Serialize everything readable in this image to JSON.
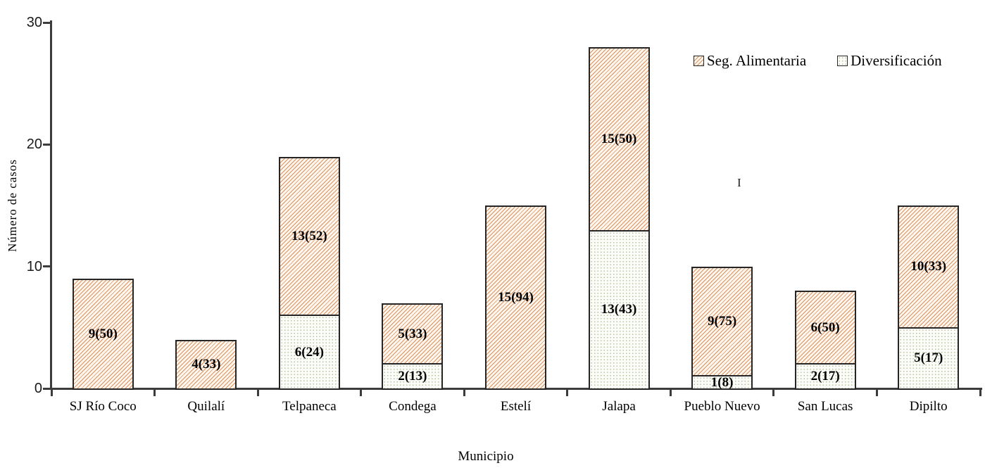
{
  "chart_data": {
    "type": "bar",
    "stacked": true,
    "title": "",
    "xlabel": "Municipio",
    "ylabel": "Número de casos",
    "ylim": [
      0,
      30
    ],
    "yticks": [
      30,
      20,
      10,
      0
    ],
    "grid": false,
    "legend_position": "top-right",
    "categories": [
      "SJ Río Coco",
      "Quilalí",
      "Telpaneca",
      "Condega",
      "Estelí",
      "Jalapa",
      "Pueblo Nuevo",
      "San Lucas",
      "Dipilto"
    ],
    "series": [
      {
        "name": "Diversificación",
        "stack_position": "bottom",
        "pattern": "dots",
        "pattern_color": "#b3c39e",
        "fill_color": "#fcfdf8",
        "values": [
          0,
          0,
          6,
          2,
          0,
          13,
          1,
          2,
          5
        ],
        "labels": [
          "",
          "",
          "6(24)",
          "2(13)",
          "",
          "13(43)",
          "1(8)",
          "2(17)",
          "5(17)"
        ]
      },
      {
        "name": "Seg. Alimentaria",
        "stack_position": "top",
        "pattern": "diagonal-hatch",
        "pattern_color": "#e0905a",
        "fill_color": "#fdf7f0",
        "values": [
          9,
          4,
          13,
          5,
          15,
          15,
          9,
          6,
          10
        ],
        "labels": [
          "9(50)",
          "4(33)",
          "13(52)",
          "5(33)",
          "15(94)",
          "15(50)",
          "9(75)",
          "6(50)",
          "10(33)"
        ]
      }
    ],
    "totals": [
      9,
      4,
      19,
      7,
      15,
      28,
      10,
      8,
      15
    ],
    "bar_border_color": "#262626",
    "axis_color": "#3c3c3c"
  },
  "legend": {
    "items": [
      {
        "label": "Seg. Alimentaria",
        "pattern": "diagonal-hatch"
      },
      {
        "label": "Diversificación",
        "pattern": "dots"
      }
    ]
  },
  "axes": {
    "y_label": "Número de casos",
    "x_label": "Municipio",
    "y_tick_labels": [
      "30",
      "20",
      "10",
      "0"
    ]
  },
  "artifacts": {
    "text_cursor_glyph": "I"
  }
}
